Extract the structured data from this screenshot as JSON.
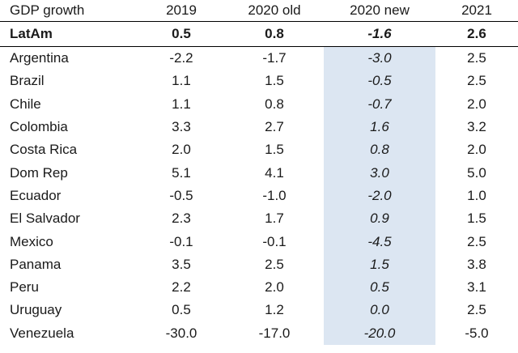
{
  "headers": [
    "GDP growth",
    "2019",
    "2020 old",
    "2020 new",
    "2021"
  ],
  "total": {
    "name": "LatAm",
    "v2019": "0.5",
    "v2020old": "0.8",
    "v2020new": "-1.6",
    "v2021": "2.6"
  },
  "rows": [
    {
      "name": "Argentina",
      "v2019": "-2.2",
      "v2020old": "-1.7",
      "v2020new": "-3.0",
      "v2021": "2.5"
    },
    {
      "name": "Brazil",
      "v2019": "1.1",
      "v2020old": "1.5",
      "v2020new": "-0.5",
      "v2021": "2.5"
    },
    {
      "name": "Chile",
      "v2019": "1.1",
      "v2020old": "0.8",
      "v2020new": "-0.7",
      "v2021": "2.0"
    },
    {
      "name": "Colombia",
      "v2019": "3.3",
      "v2020old": "2.7",
      "v2020new": "1.6",
      "v2021": "3.2"
    },
    {
      "name": "Costa Rica",
      "v2019": "2.0",
      "v2020old": "1.5",
      "v2020new": "0.8",
      "v2021": "2.0"
    },
    {
      "name": "Dom Rep",
      "v2019": "5.1",
      "v2020old": "4.1",
      "v2020new": "3.0",
      "v2021": "5.0"
    },
    {
      "name": "Ecuador",
      "v2019": "-0.5",
      "v2020old": "-1.0",
      "v2020new": "-2.0",
      "v2021": "1.0"
    },
    {
      "name": "El Salvador",
      "v2019": "2.3",
      "v2020old": "1.7",
      "v2020new": "0.9",
      "v2021": "1.5"
    },
    {
      "name": "Mexico",
      "v2019": "-0.1",
      "v2020old": "-0.1",
      "v2020new": "-4.5",
      "v2021": "2.5"
    },
    {
      "name": "Panama",
      "v2019": "3.5",
      "v2020old": "2.5",
      "v2020new": "1.5",
      "v2021": "3.8"
    },
    {
      "name": "Peru",
      "v2019": "2.2",
      "v2020old": "2.0",
      "v2020new": "0.5",
      "v2021": "3.1"
    },
    {
      "name": "Uruguay",
      "v2019": "0.5",
      "v2020old": "1.2",
      "v2020new": "0.0",
      "v2021": "2.5"
    },
    {
      "name": "Venezuela",
      "v2019": "-30.0",
      "v2020old": "-17.0",
      "v2020new": "-20.0",
      "v2021": "-5.0"
    }
  ]
}
